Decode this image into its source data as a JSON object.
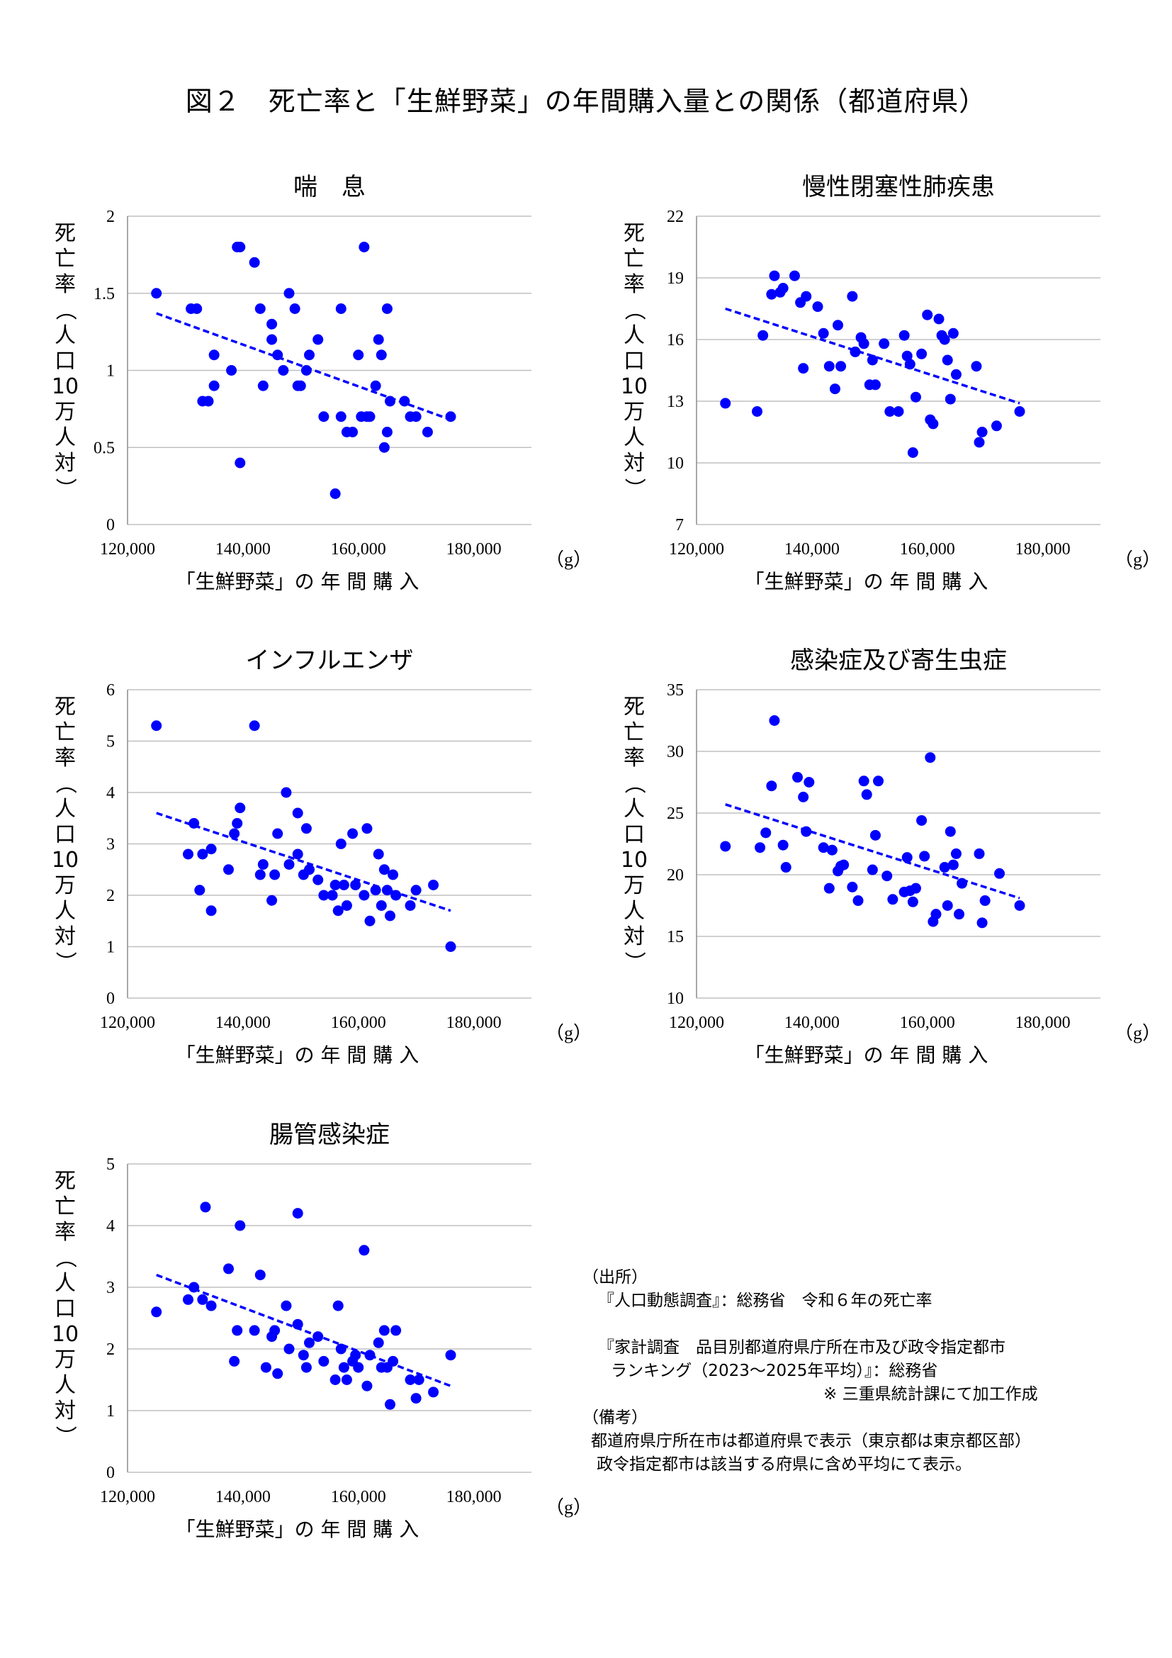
{
  "figure_title": "図２　死亡率と「生鮮野菜」の年間購入量との関係（都道府県）",
  "common": {
    "ylabel_chars": [
      "死",
      "亡",
      "率",
      "（",
      "人",
      "口",
      "10",
      "万",
      "人",
      "対",
      "）"
    ],
    "xlabel": "「生鮮野菜」の 年 間 購 入",
    "x_unit": "（g）",
    "x_ticks": [
      "120,000",
      "140,000",
      "160,000",
      "180,000"
    ],
    "point_color": "#0000ff",
    "trend_color": "#0000ff",
    "grid_color": "#c0c0c0"
  },
  "chart_data": [
    {
      "type": "scatter",
      "title": "喘　息",
      "xlabel": "「生鮮野菜」の 年 間 購 入",
      "ylabel": "死亡率（人口10万人対）",
      "xlim": [
        120000,
        190000
      ],
      "ylim": [
        0,
        2
      ],
      "y_ticks": [
        "0",
        "0.5",
        "1",
        "1.5",
        "2"
      ],
      "trendline": [
        [
          125000,
          1.37
        ],
        [
          176000,
          0.68
        ]
      ],
      "points": [
        [
          125000,
          1.5
        ],
        [
          131000,
          1.4
        ],
        [
          132000,
          1.4
        ],
        [
          133000,
          0.8
        ],
        [
          134000,
          0.8
        ],
        [
          135000,
          1.1
        ],
        [
          135000,
          0.9
        ],
        [
          138000,
          1.0
        ],
        [
          139000,
          1.8
        ],
        [
          139500,
          1.8
        ],
        [
          139500,
          0.4
        ],
        [
          142000,
          1.7
        ],
        [
          143000,
          1.4
        ],
        [
          143500,
          0.9
        ],
        [
          145000,
          1.3
        ],
        [
          145000,
          1.2
        ],
        [
          146000,
          1.1
        ],
        [
          147000,
          1.0
        ],
        [
          148000,
          1.5
        ],
        [
          149000,
          1.4
        ],
        [
          149500,
          0.9
        ],
        [
          150000,
          0.9
        ],
        [
          151000,
          1.0
        ],
        [
          151500,
          1.1
        ],
        [
          153000,
          1.2
        ],
        [
          154000,
          0.7
        ],
        [
          156000,
          0.2
        ],
        [
          157000,
          1.4
        ],
        [
          157000,
          0.7
        ],
        [
          158000,
          0.6
        ],
        [
          159000,
          0.6
        ],
        [
          160000,
          1.1
        ],
        [
          160500,
          0.7
        ],
        [
          161000,
          1.8
        ],
        [
          161500,
          0.7
        ],
        [
          162000,
          0.7
        ],
        [
          163000,
          0.9
        ],
        [
          163500,
          1.2
        ],
        [
          164000,
          1.1
        ],
        [
          164500,
          0.5
        ],
        [
          165000,
          1.4
        ],
        [
          165000,
          0.6
        ],
        [
          165500,
          0.8
        ],
        [
          168000,
          0.8
        ],
        [
          169000,
          0.7
        ],
        [
          170000,
          0.7
        ],
        [
          172000,
          0.6
        ],
        [
          176000,
          0.7
        ]
      ]
    },
    {
      "type": "scatter",
      "title": "慢性閉塞性肺疾患",
      "xlabel": "「生鮮野菜」の 年 間 購 入",
      "ylabel": "死亡率（人口10万人対）",
      "xlim": [
        120000,
        190000
      ],
      "ylim": [
        7,
        22
      ],
      "y_ticks": [
        "7",
        "10",
        "13",
        "16",
        "19",
        "22"
      ],
      "trendline": [
        [
          125000,
          17.5
        ],
        [
          176000,
          12.9
        ]
      ],
      "points": [
        [
          125000,
          12.9
        ],
        [
          130500,
          12.5
        ],
        [
          131500,
          16.2
        ],
        [
          133000,
          18.2
        ],
        [
          133500,
          19.1
        ],
        [
          134500,
          18.3
        ],
        [
          135000,
          18.5
        ],
        [
          137000,
          19.1
        ],
        [
          138000,
          17.8
        ],
        [
          138500,
          14.6
        ],
        [
          139000,
          18.1
        ],
        [
          141000,
          17.6
        ],
        [
          142000,
          16.3
        ],
        [
          143000,
          14.7
        ],
        [
          144000,
          13.6
        ],
        [
          144500,
          16.7
        ],
        [
          145000,
          14.7
        ],
        [
          147000,
          18.1
        ],
        [
          147500,
          15.4
        ],
        [
          148500,
          16.1
        ],
        [
          149000,
          15.8
        ],
        [
          150000,
          13.8
        ],
        [
          150500,
          15.0
        ],
        [
          151000,
          13.8
        ],
        [
          152500,
          15.8
        ],
        [
          153500,
          12.5
        ],
        [
          155000,
          12.5
        ],
        [
          156000,
          16.2
        ],
        [
          156500,
          15.2
        ],
        [
          157000,
          14.8
        ],
        [
          157500,
          10.5
        ],
        [
          158000,
          13.2
        ],
        [
          159000,
          15.3
        ],
        [
          160000,
          17.2
        ],
        [
          160500,
          12.1
        ],
        [
          161000,
          11.9
        ],
        [
          162000,
          17.0
        ],
        [
          162500,
          16.2
        ],
        [
          163000,
          16.0
        ],
        [
          163500,
          15.0
        ],
        [
          164000,
          13.1
        ],
        [
          164500,
          16.3
        ],
        [
          165000,
          14.3
        ],
        [
          168500,
          14.7
        ],
        [
          169000,
          11.0
        ],
        [
          169500,
          11.5
        ],
        [
          172000,
          11.8
        ],
        [
          176000,
          12.5
        ]
      ]
    },
    {
      "type": "scatter",
      "title": "インフルエンザ",
      "xlabel": "「生鮮野菜」の 年 間 購 入",
      "ylabel": "死亡率（人口10万人対）",
      "xlim": [
        120000,
        190000
      ],
      "ylim": [
        0,
        6
      ],
      "y_ticks": [
        "0",
        "1",
        "2",
        "3",
        "4",
        "5",
        "6"
      ],
      "trendline": [
        [
          125000,
          3.6
        ],
        [
          176000,
          1.7
        ]
      ],
      "points": [
        [
          125000,
          5.3
        ],
        [
          130500,
          2.8
        ],
        [
          131500,
          3.4
        ],
        [
          132500,
          2.1
        ],
        [
          133000,
          2.8
        ],
        [
          134500,
          1.7
        ],
        [
          134500,
          2.9
        ],
        [
          137500,
          2.5
        ],
        [
          138500,
          3.2
        ],
        [
          139000,
          3.4
        ],
        [
          139500,
          3.7
        ],
        [
          142000,
          5.3
        ],
        [
          143000,
          2.4
        ],
        [
          143500,
          2.6
        ],
        [
          145000,
          1.9
        ],
        [
          145500,
          2.4
        ],
        [
          146000,
          3.2
        ],
        [
          147500,
          4.0
        ],
        [
          148000,
          2.6
        ],
        [
          149500,
          2.8
        ],
        [
          149500,
          3.6
        ],
        [
          150500,
          2.4
        ],
        [
          151000,
          3.3
        ],
        [
          151500,
          2.5
        ],
        [
          153000,
          2.3
        ],
        [
          154000,
          2.0
        ],
        [
          155500,
          2.0
        ],
        [
          156000,
          2.2
        ],
        [
          156500,
          1.7
        ],
        [
          157000,
          3.0
        ],
        [
          157500,
          2.2
        ],
        [
          158000,
          1.8
        ],
        [
          159000,
          3.2
        ],
        [
          159500,
          2.2
        ],
        [
          161000,
          2.0
        ],
        [
          161500,
          3.3
        ],
        [
          162000,
          1.5
        ],
        [
          163000,
          2.1
        ],
        [
          163500,
          2.8
        ],
        [
          164000,
          1.8
        ],
        [
          164500,
          2.5
        ],
        [
          165000,
          2.1
        ],
        [
          165500,
          1.6
        ],
        [
          166000,
          2.4
        ],
        [
          166500,
          2.0
        ],
        [
          169000,
          1.8
        ],
        [
          170000,
          2.1
        ],
        [
          173000,
          2.2
        ],
        [
          176000,
          1.0
        ]
      ]
    },
    {
      "type": "scatter",
      "title": "感染症及び寄生虫症",
      "xlabel": "「生鮮野菜」の 年 間 購 入",
      "ylabel": "死亡率（人口10万人対）",
      "xlim": [
        120000,
        190000
      ],
      "ylim": [
        10,
        35
      ],
      "y_ticks": [
        "10",
        "15",
        "20",
        "25",
        "30",
        "35"
      ],
      "trendline": [
        [
          125000,
          25.7
        ],
        [
          176000,
          18.1
        ]
      ],
      "points": [
        [
          125000,
          22.3
        ],
        [
          131000,
          22.2
        ],
        [
          132000,
          23.4
        ],
        [
          133000,
          27.2
        ],
        [
          133500,
          32.5
        ],
        [
          135000,
          22.4
        ],
        [
          135500,
          20.6
        ],
        [
          137500,
          27.9
        ],
        [
          138500,
          26.3
        ],
        [
          139000,
          23.5
        ],
        [
          139500,
          27.5
        ],
        [
          142000,
          22.2
        ],
        [
          143000,
          18.9
        ],
        [
          143500,
          22.0
        ],
        [
          144500,
          20.3
        ],
        [
          145000,
          20.7
        ],
        [
          145500,
          20.8
        ],
        [
          147000,
          19.0
        ],
        [
          148000,
          17.9
        ],
        [
          149000,
          27.6
        ],
        [
          149500,
          26.5
        ],
        [
          150500,
          20.4
        ],
        [
          151000,
          23.2
        ],
        [
          151500,
          27.6
        ],
        [
          153000,
          19.9
        ],
        [
          154000,
          18.0
        ],
        [
          156000,
          18.6
        ],
        [
          156500,
          21.4
        ],
        [
          157000,
          18.7
        ],
        [
          157500,
          17.8
        ],
        [
          158000,
          18.9
        ],
        [
          159000,
          24.4
        ],
        [
          159500,
          21.5
        ],
        [
          160500,
          29.5
        ],
        [
          161000,
          16.2
        ],
        [
          161500,
          16.8
        ],
        [
          163000,
          20.6
        ],
        [
          163500,
          17.5
        ],
        [
          164000,
          23.5
        ],
        [
          164500,
          20.8
        ],
        [
          165000,
          21.7
        ],
        [
          165500,
          16.8
        ],
        [
          166000,
          19.3
        ],
        [
          169000,
          21.7
        ],
        [
          169500,
          16.1
        ],
        [
          170000,
          17.9
        ],
        [
          172500,
          20.1
        ],
        [
          176000,
          17.5
        ]
      ]
    },
    {
      "type": "scatter",
      "title": "腸管感染症",
      "xlabel": "「生鮮野菜」の 年 間 購 入",
      "ylabel": "死亡率（人口10万人対）",
      "xlim": [
        120000,
        190000
      ],
      "ylim": [
        0,
        5
      ],
      "y_ticks": [
        "0",
        "1",
        "2",
        "3",
        "4",
        "5"
      ],
      "trendline": [
        [
          125000,
          3.2
        ],
        [
          176000,
          1.4
        ]
      ],
      "points": [
        [
          125000,
          2.6
        ],
        [
          130500,
          2.8
        ],
        [
          131500,
          3.0
        ],
        [
          133000,
          2.8
        ],
        [
          133500,
          4.3
        ],
        [
          134500,
          2.7
        ],
        [
          137500,
          3.3
        ],
        [
          138500,
          1.8
        ],
        [
          139000,
          2.3
        ],
        [
          139500,
          4.0
        ],
        [
          142000,
          2.3
        ],
        [
          143000,
          3.2
        ],
        [
          144000,
          1.7
        ],
        [
          145000,
          2.2
        ],
        [
          145500,
          2.3
        ],
        [
          146000,
          1.6
        ],
        [
          147500,
          2.7
        ],
        [
          148000,
          2.0
        ],
        [
          149500,
          2.4
        ],
        [
          149500,
          4.2
        ],
        [
          150500,
          1.9
        ],
        [
          151000,
          1.7
        ],
        [
          151500,
          2.1
        ],
        [
          153000,
          2.2
        ],
        [
          154000,
          1.8
        ],
        [
          156000,
          1.5
        ],
        [
          156500,
          2.7
        ],
        [
          157000,
          2.0
        ],
        [
          157500,
          1.7
        ],
        [
          158000,
          1.5
        ],
        [
          159000,
          1.8
        ],
        [
          159500,
          1.9
        ],
        [
          160000,
          1.7
        ],
        [
          161000,
          3.6
        ],
        [
          161500,
          1.4
        ],
        [
          162000,
          1.9
        ],
        [
          163500,
          2.1
        ],
        [
          164000,
          1.7
        ],
        [
          164500,
          2.3
        ],
        [
          165000,
          1.7
        ],
        [
          165500,
          1.1
        ],
        [
          166000,
          1.8
        ],
        [
          166500,
          2.3
        ],
        [
          169000,
          1.5
        ],
        [
          170000,
          1.2
        ],
        [
          170500,
          1.5
        ],
        [
          173000,
          1.3
        ],
        [
          176000,
          1.9
        ]
      ]
    }
  ],
  "notes": {
    "source_heading": "（出所）",
    "source_1": "『人口動態調査』：総務省　令和６年の死亡率",
    "source_2a": "『家計調査　品目別都道府県庁所在市及び政令指定都市",
    "source_2b": "ランキング（2023～2025年平均）』：総務省",
    "source_3": "※ 三重県統計課にて加工作成",
    "remarks_heading": "（備考）",
    "remarks_1": "都道府県庁所在市は都道府県で表示（東京都は東京都区部）",
    "remarks_2": "政令指定都市は該当する府県に含め平均にて表示。"
  }
}
